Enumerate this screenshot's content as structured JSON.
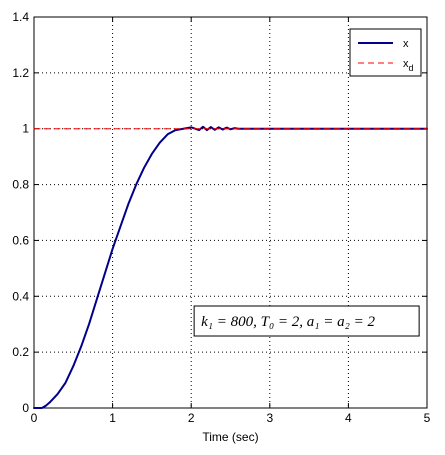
{
  "chart_data": {
    "type": "line",
    "title": "",
    "xlabel": "Time (sec)",
    "ylabel": "",
    "xlim": [
      0,
      5
    ],
    "ylim": [
      0,
      1.4
    ],
    "xticks": [
      0,
      1,
      2,
      3,
      4,
      5
    ],
    "yticks": [
      0,
      0.2,
      0.4,
      0.6,
      0.8,
      1,
      1.2,
      1.4
    ],
    "xtick_labels": [
      "0",
      "1",
      "2",
      "3",
      "4",
      "5"
    ],
    "ytick_labels": [
      "0",
      "0.2",
      "0.4",
      "0.6",
      "0.8",
      "1",
      "1.2",
      "1.4"
    ],
    "grid": true,
    "legend_position": "top-right",
    "series": [
      {
        "name": "x",
        "label_main": "x",
        "label_sub": "",
        "color": "#00008b",
        "dash": "solid",
        "x": [
          0,
          0.05,
          0.1,
          0.15,
          0.2,
          0.3,
          0.4,
          0.5,
          0.6,
          0.7,
          0.8,
          0.9,
          1.0,
          1.1,
          1.2,
          1.3,
          1.4,
          1.5,
          1.6,
          1.7,
          1.8,
          1.9,
          2.0,
          2.1,
          2.15,
          2.2,
          2.25,
          2.3,
          2.35,
          2.4,
          2.45,
          2.5,
          2.55,
          2.6,
          2.7,
          2.8,
          3.0,
          3.5,
          4.0,
          4.5,
          5.0
        ],
        "y": [
          0,
          0,
          0,
          0.008,
          0.02,
          0.05,
          0.09,
          0.15,
          0.22,
          0.3,
          0.39,
          0.48,
          0.57,
          0.65,
          0.73,
          0.8,
          0.86,
          0.91,
          0.95,
          0.98,
          0.995,
          1.0,
          1.005,
          0.995,
          1.007,
          0.995,
          1.006,
          0.996,
          1.005,
          0.997,
          1.004,
          0.998,
          1.002,
          1.0,
          1.0,
          1.0,
          1.0,
          1.0,
          1.0,
          1.0,
          1.0
        ]
      },
      {
        "name": "x_d",
        "label_main": "x",
        "label_sub": "d",
        "color": "#ff0000",
        "dash": "dashed",
        "x": [
          0,
          5
        ],
        "y": [
          1,
          1
        ]
      }
    ],
    "annotation": {
      "text": "k₁ = 800, T₀ = 2, a₁ = a₂ = 2",
      "x": 2.05,
      "y": 0.29
    },
    "xlabel_text": "Time (sec)"
  }
}
